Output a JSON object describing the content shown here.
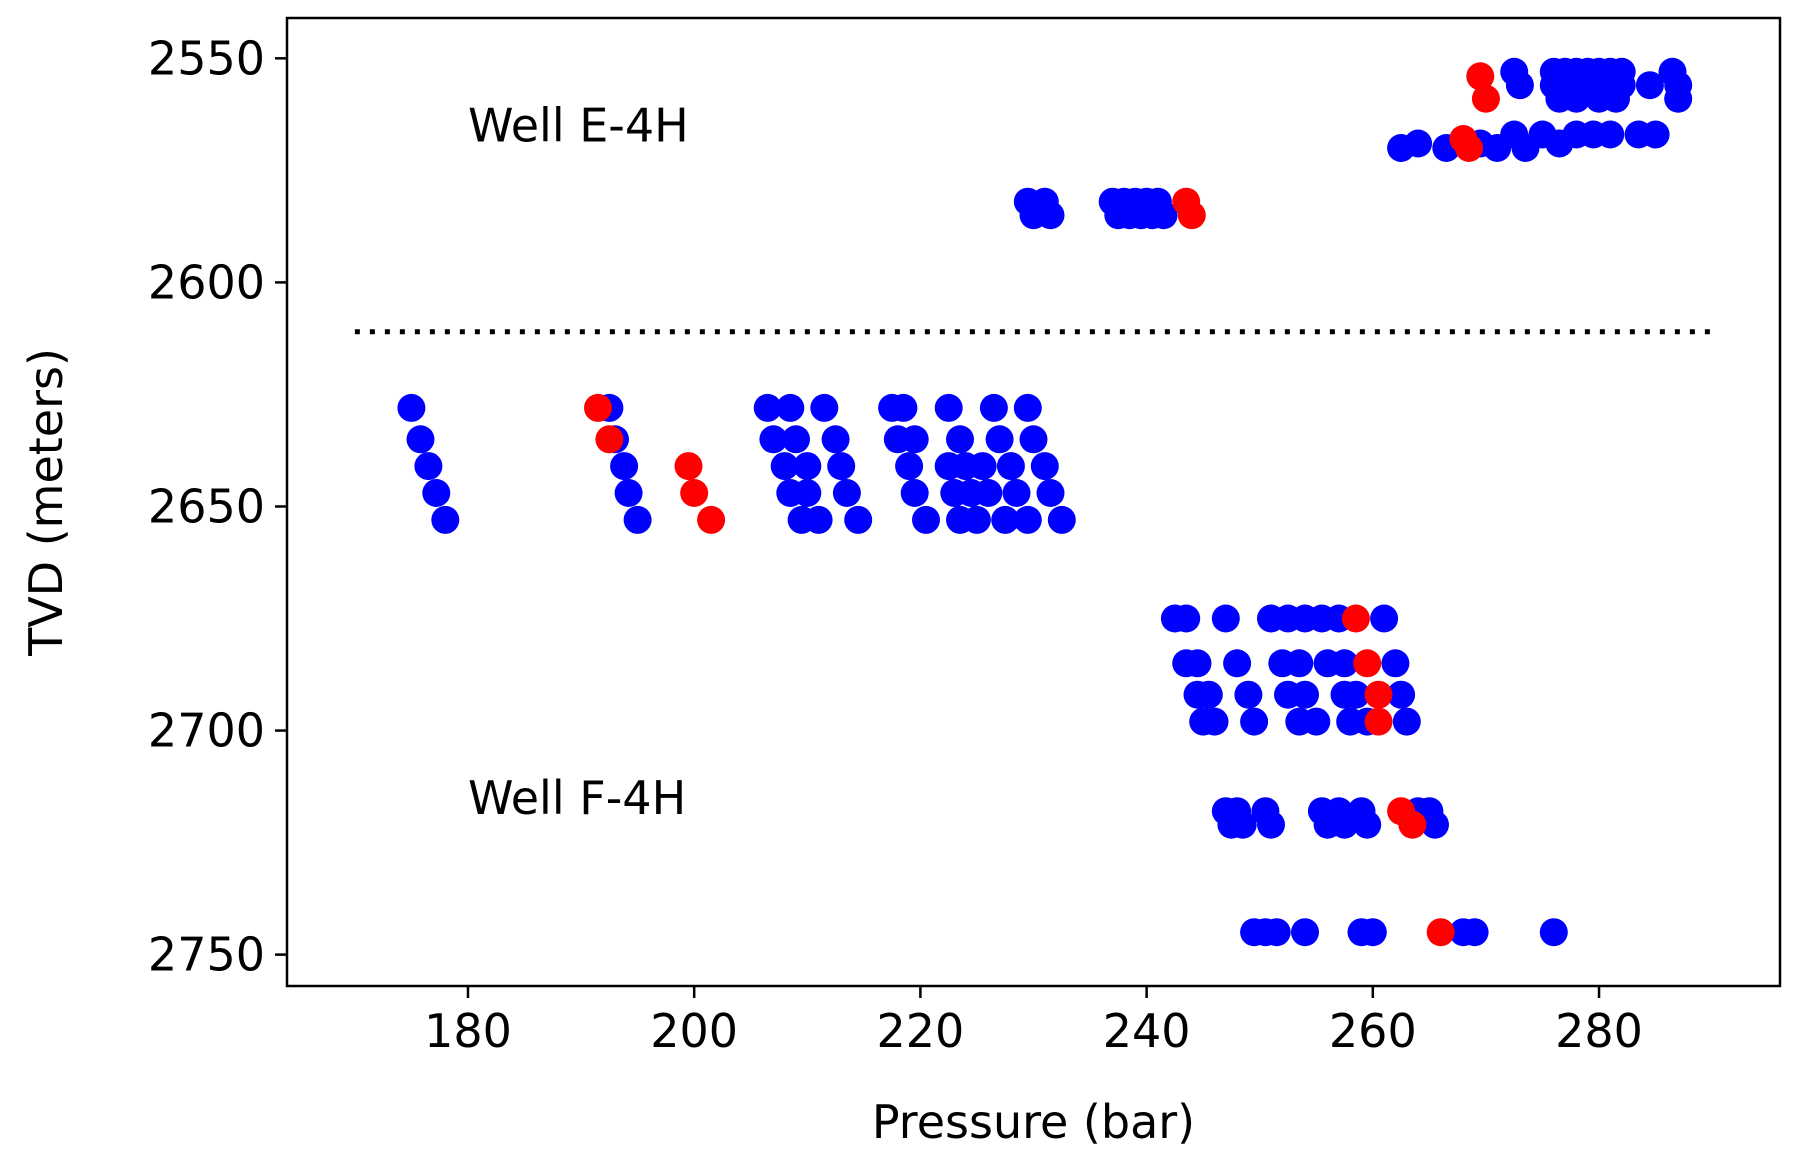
{
  "chart_data": {
    "type": "scatter",
    "title": "",
    "xlabel": "Pressure (bar)",
    "ylabel": "TVD (meters)",
    "xlim": [
      164,
      296
    ],
    "ylim": [
      2541,
      2757
    ],
    "y_inverted": true,
    "grid": false,
    "legend": "none",
    "x_ticks": [
      180,
      200,
      220,
      240,
      260,
      280
    ],
    "y_ticks": [
      2550,
      2600,
      2650,
      2700,
      2750
    ],
    "annotations": [
      {
        "text": "Well E-4H",
        "x": 180,
        "y": 2565
      },
      {
        "text": "Well F-4H",
        "x": 180,
        "y": 2715
      }
    ],
    "separator": {
      "style": "dotted",
      "y": 2611,
      "x_range": [
        170,
        290
      ]
    },
    "series": [
      {
        "color": "#0000ff",
        "points": [
          [
            229.5,
            2582
          ],
          [
            231,
            2582
          ],
          [
            230,
            2585
          ],
          [
            231.5,
            2585
          ],
          [
            237,
            2582
          ],
          [
            238,
            2582
          ],
          [
            239,
            2582
          ],
          [
            240,
            2582
          ],
          [
            241,
            2582
          ],
          [
            237.5,
            2585
          ],
          [
            238.5,
            2585
          ],
          [
            239.5,
            2585
          ],
          [
            240.5,
            2585
          ],
          [
            241.5,
            2585
          ],
          [
            262.5,
            2570
          ],
          [
            264,
            2569
          ],
          [
            266.5,
            2570
          ],
          [
            269.5,
            2569
          ],
          [
            271,
            2570
          ],
          [
            272.5,
            2567
          ],
          [
            273.5,
            2570
          ],
          [
            275,
            2567
          ],
          [
            276.5,
            2569
          ],
          [
            278,
            2567
          ],
          [
            279.5,
            2567
          ],
          [
            281,
            2567
          ],
          [
            283.5,
            2567
          ],
          [
            285,
            2567
          ],
          [
            272.5,
            2553
          ],
          [
            276,
            2553
          ],
          [
            277,
            2553
          ],
          [
            278,
            2553
          ],
          [
            279,
            2553
          ],
          [
            280,
            2553
          ],
          [
            281,
            2553
          ],
          [
            282,
            2553
          ],
          [
            286.5,
            2553
          ],
          [
            273,
            2556
          ],
          [
            276,
            2556
          ],
          [
            277.5,
            2556
          ],
          [
            279,
            2556
          ],
          [
            280.5,
            2556
          ],
          [
            282,
            2556
          ],
          [
            284.5,
            2556
          ],
          [
            287,
            2556
          ],
          [
            276.5,
            2559
          ],
          [
            278,
            2559
          ],
          [
            280,
            2559
          ],
          [
            281.5,
            2559
          ],
          [
            287,
            2559
          ],
          [
            175,
            2628
          ],
          [
            175.8,
            2635
          ],
          [
            176.5,
            2641
          ],
          [
            177.2,
            2647
          ],
          [
            178,
            2653
          ],
          [
            192.5,
            2628
          ],
          [
            193,
            2635
          ],
          [
            193.8,
            2641
          ],
          [
            194.2,
            2647
          ],
          [
            195,
            2653
          ],
          [
            206.5,
            2628
          ],
          [
            208.5,
            2628
          ],
          [
            211.5,
            2628
          ],
          [
            217.5,
            2628
          ],
          [
            218.5,
            2628
          ],
          [
            222.5,
            2628
          ],
          [
            226.5,
            2628
          ],
          [
            229.5,
            2628
          ],
          [
            207,
            2635
          ],
          [
            209,
            2635
          ],
          [
            212.5,
            2635
          ],
          [
            218,
            2635
          ],
          [
            219.5,
            2635
          ],
          [
            223.5,
            2635
          ],
          [
            227,
            2635
          ],
          [
            230,
            2635
          ],
          [
            208,
            2641
          ],
          [
            210,
            2641
          ],
          [
            213,
            2641
          ],
          [
            219,
            2641
          ],
          [
            222.5,
            2641
          ],
          [
            224,
            2641
          ],
          [
            225.5,
            2641
          ],
          [
            228,
            2641
          ],
          [
            231,
            2641
          ],
          [
            208.5,
            2647
          ],
          [
            210,
            2647
          ],
          [
            213.5,
            2647
          ],
          [
            219.5,
            2647
          ],
          [
            223,
            2647
          ],
          [
            224.5,
            2647
          ],
          [
            226,
            2647
          ],
          [
            228.5,
            2647
          ],
          [
            231.5,
            2647
          ],
          [
            209.5,
            2653
          ],
          [
            211,
            2653
          ],
          [
            214.5,
            2653
          ],
          [
            220.5,
            2653
          ],
          [
            223.5,
            2653
          ],
          [
            225,
            2653
          ],
          [
            227.5,
            2653
          ],
          [
            229.5,
            2653
          ],
          [
            232.5,
            2653
          ],
          [
            242.5,
            2675
          ],
          [
            243.5,
            2675
          ],
          [
            247,
            2675
          ],
          [
            251,
            2675
          ],
          [
            252.5,
            2675
          ],
          [
            254,
            2675
          ],
          [
            255.5,
            2675
          ],
          [
            257,
            2675
          ],
          [
            261,
            2675
          ],
          [
            243.5,
            2685
          ],
          [
            244.5,
            2685
          ],
          [
            248,
            2685
          ],
          [
            252,
            2685
          ],
          [
            253.5,
            2685
          ],
          [
            256,
            2685
          ],
          [
            257.5,
            2685
          ],
          [
            262,
            2685
          ],
          [
            244.5,
            2692
          ],
          [
            245.5,
            2692
          ],
          [
            249,
            2692
          ],
          [
            252.5,
            2692
          ],
          [
            254,
            2692
          ],
          [
            257.5,
            2692
          ],
          [
            258.5,
            2692
          ],
          [
            262.5,
            2692
          ],
          [
            245,
            2698
          ],
          [
            246,
            2698
          ],
          [
            249.5,
            2698
          ],
          [
            253.5,
            2698
          ],
          [
            255,
            2698
          ],
          [
            258,
            2698
          ],
          [
            259.5,
            2698
          ],
          [
            263,
            2698
          ],
          [
            247,
            2718
          ],
          [
            248,
            2718
          ],
          [
            250.5,
            2718
          ],
          [
            255.5,
            2718
          ],
          [
            257,
            2718
          ],
          [
            259,
            2718
          ],
          [
            264,
            2718
          ],
          [
            265,
            2718
          ],
          [
            247.5,
            2721
          ],
          [
            248.5,
            2721
          ],
          [
            251,
            2721
          ],
          [
            256,
            2721
          ],
          [
            257.5,
            2721
          ],
          [
            259.5,
            2721
          ],
          [
            265.5,
            2721
          ],
          [
            249.5,
            2745
          ],
          [
            250.5,
            2745
          ],
          [
            251.5,
            2745
          ],
          [
            254,
            2745
          ],
          [
            259,
            2745
          ],
          [
            260,
            2745
          ],
          [
            268,
            2745
          ],
          [
            269,
            2745
          ],
          [
            276,
            2745
          ]
        ]
      },
      {
        "color": "#ff0000",
        "points": [
          [
            269.5,
            2554
          ],
          [
            270,
            2559
          ],
          [
            268,
            2568
          ],
          [
            268.5,
            2570
          ],
          [
            243.5,
            2582
          ],
          [
            244,
            2585
          ],
          [
            191.5,
            2628
          ],
          [
            192.5,
            2635
          ],
          [
            199.5,
            2641
          ],
          [
            200,
            2647
          ],
          [
            201.5,
            2653
          ],
          [
            258.5,
            2675
          ],
          [
            259.5,
            2685
          ],
          [
            260.5,
            2692
          ],
          [
            260.5,
            2698
          ],
          [
            262.5,
            2718
          ],
          [
            263.5,
            2721
          ],
          [
            266,
            2745
          ]
        ]
      }
    ]
  }
}
